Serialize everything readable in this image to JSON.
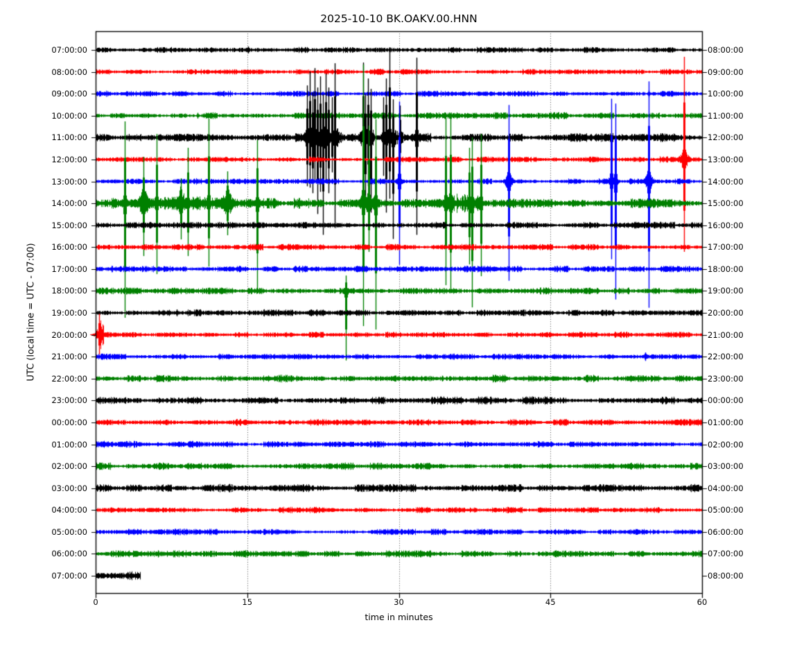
{
  "chart_data": {
    "type": "line",
    "subtype": "helicorder-dayplot",
    "title": "2025-10-10 BK.OAKV.00.HNN",
    "xlabel": "time in minutes",
    "ylabel": "UTC (local time = UTC - 07:00)",
    "x_range": [
      0,
      60
    ],
    "x_ticks": [
      0,
      15,
      30,
      45,
      60
    ],
    "grid_minutes": [
      15,
      30,
      45
    ],
    "minutes_per_row": 60,
    "row_color_cycle": [
      "#000000",
      "#ff0000",
      "#0000ff",
      "#008000"
    ],
    "background": "#ffffff",
    "rows": [
      {
        "left_label": "07:00:00",
        "right_label": "08:00:00",
        "color": "#000000",
        "noise": 3.0,
        "spikes": [
          {
            "t": 15.1,
            "up": 5,
            "dn": 5,
            "cw": 2,
            "ca": 4
          }
        ]
      },
      {
        "left_label": "08:00:00",
        "right_label": "09:00:00",
        "color": "#ff0000",
        "noise": 2.8
      },
      {
        "left_label": "09:00:00",
        "right_label": "10:00:00",
        "color": "#0000ff",
        "noise": 2.8,
        "spikes": [
          {
            "t": 54.7,
            "up": 5,
            "dn": 5,
            "cw": 2,
            "ca": 4
          }
        ]
      },
      {
        "left_label": "10:00:00",
        "right_label": "11:00:00",
        "color": "#008000",
        "noise": 3.2,
        "spikes": [
          {
            "t": 10.1,
            "up": 4,
            "dn": 4,
            "cw": 2,
            "ca": 3
          }
        ]
      },
      {
        "left_label": "11:00:00",
        "right_label": "12:00:00",
        "color": "#000000",
        "noise": 4.2,
        "bursts": [
          {
            "t0": 20.6,
            "t1": 24.4,
            "base": 14
          },
          {
            "t0": 26.2,
            "t1": 27.6,
            "base": 11
          },
          {
            "t0": 28.2,
            "t1": 30.6,
            "base": 9
          },
          {
            "t0": 31.3,
            "t1": 32.3,
            "base": 5
          },
          {
            "t0": 49.0,
            "t1": 58.0,
            "base": 4
          }
        ],
        "spikes": [
          {
            "t": 20.9,
            "up": 75,
            "dn": 70,
            "cw": 4,
            "ca": 20
          },
          {
            "t": 21.2,
            "up": 95,
            "dn": 72,
            "cw": 4,
            "ca": 20
          },
          {
            "t": 21.45,
            "up": 65,
            "dn": 80,
            "cw": 4,
            "ca": 18
          },
          {
            "t": 21.7,
            "up": 100,
            "dn": 62,
            "cw": 4,
            "ca": 18
          },
          {
            "t": 21.95,
            "up": 72,
            "dn": 110,
            "cw": 4,
            "ca": 18
          },
          {
            "t": 22.2,
            "up": 88,
            "dn": 78,
            "cw": 4,
            "ca": 18
          },
          {
            "t": 22.5,
            "up": 62,
            "dn": 140,
            "cw": 3,
            "ca": 15
          },
          {
            "t": 22.75,
            "up": 92,
            "dn": 62,
            "cw": 3,
            "ca": 15
          },
          {
            "t": 23.05,
            "up": 72,
            "dn": 80,
            "cw": 3,
            "ca": 15
          },
          {
            "t": 23.35,
            "up": 58,
            "dn": 50,
            "cw": 3,
            "ca": 12
          },
          {
            "t": 23.65,
            "up": 107,
            "dn": 122,
            "cw": 3,
            "ca": 14
          },
          {
            "t": 26.45,
            "up": 108,
            "dn": 60,
            "cw": 4,
            "ca": 22
          },
          {
            "t": 26.7,
            "up": 62,
            "dn": 95,
            "cw": 4,
            "ca": 20
          },
          {
            "t": 26.95,
            "up": 85,
            "dn": 70,
            "cw": 4,
            "ca": 18
          },
          {
            "t": 27.25,
            "up": 70,
            "dn": 108,
            "cw": 3,
            "ca": 15
          },
          {
            "t": 28.45,
            "up": 58,
            "dn": 55,
            "cw": 3,
            "ca": 14
          },
          {
            "t": 28.75,
            "up": 85,
            "dn": 108,
            "cw": 3,
            "ca": 14
          },
          {
            "t": 29.05,
            "up": 130,
            "dn": 88,
            "cw": 3,
            "ca": 16
          },
          {
            "t": 29.45,
            "up": 55,
            "dn": 146,
            "cw": 3,
            "ca": 12
          },
          {
            "t": 30.1,
            "up": 46,
            "dn": 40,
            "cw": 3,
            "ca": 12
          },
          {
            "t": 31.75,
            "up": 115,
            "dn": 140,
            "cw": 3,
            "ca": 12
          }
        ]
      },
      {
        "left_label": "12:00:00",
        "right_label": "13:00:00",
        "color": "#ff0000",
        "noise": 3.0,
        "spikes": [
          {
            "t": 58.2,
            "up": 148,
            "dn": 133,
            "cw": 5,
            "ca": 18
          }
        ]
      },
      {
        "left_label": "13:00:00",
        "right_label": "14:00:00",
        "color": "#0000ff",
        "noise": 3.0,
        "spikes": [
          {
            "t": 30.05,
            "up": 115,
            "dn": 120,
            "cw": 3,
            "ca": 14
          },
          {
            "t": 40.85,
            "up": 110,
            "dn": 143,
            "cw": 4,
            "ca": 20
          },
          {
            "t": 51.0,
            "up": 119,
            "dn": 112,
            "cw": 3,
            "ca": 18
          },
          {
            "t": 51.4,
            "up": 112,
            "dn": 170,
            "cw": 3,
            "ca": 13
          },
          {
            "t": 54.7,
            "up": 144,
            "dn": 182,
            "cw": 4,
            "ca": 22
          }
        ]
      },
      {
        "left_label": "14:00:00",
        "right_label": "15:00:00",
        "color": "#008000",
        "noise": 5.0,
        "bursts": [
          {
            "t0": 2.5,
            "t1": 16.6,
            "base": 7
          },
          {
            "t0": 26.0,
            "t1": 28.2,
            "base": 9
          },
          {
            "t0": 34.3,
            "t1": 38.5,
            "base": 11
          }
        ],
        "spikes": [
          {
            "t": 2.9,
            "up": 118,
            "dn": 165,
            "cw": 3,
            "ca": 16
          },
          {
            "t": 4.7,
            "up": 67,
            "dn": 76,
            "cw": 6,
            "ca": 26
          },
          {
            "t": 6.0,
            "up": 100,
            "dn": 102,
            "cw": 3,
            "ca": 16
          },
          {
            "t": 8.4,
            "up": 36,
            "dn": 52,
            "cw": 6,
            "ca": 24
          },
          {
            "t": 9.1,
            "up": 80,
            "dn": 76,
            "cw": 3,
            "ca": 14
          },
          {
            "t": 11.2,
            "up": 122,
            "dn": 91,
            "cw": 3,
            "ca": 14
          },
          {
            "t": 13.0,
            "up": 46,
            "dn": 46,
            "cw": 6,
            "ca": 26
          },
          {
            "t": 16.0,
            "up": 91,
            "dn": 130,
            "cw": 3,
            "ca": 16
          },
          {
            "t": 26.45,
            "up": 200,
            "dn": 177,
            "cw": 4,
            "ca": 22
          },
          {
            "t": 27.05,
            "up": 112,
            "dn": 70,
            "cw": 5,
            "ca": 22
          },
          {
            "t": 27.7,
            "up": 121,
            "dn": 182,
            "cw": 3,
            "ca": 14
          },
          {
            "t": 34.65,
            "up": 123,
            "dn": 118,
            "cw": 3,
            "ca": 18
          },
          {
            "t": 35.1,
            "up": 126,
            "dn": 128,
            "cw": 4,
            "ca": 20
          },
          {
            "t": 36.95,
            "up": 80,
            "dn": 88,
            "cw": 3,
            "ca": 14
          },
          {
            "t": 37.25,
            "up": 95,
            "dn": 150,
            "cw": 3,
            "ca": 14
          },
          {
            "t": 38.1,
            "up": 100,
            "dn": 105,
            "cw": 3,
            "ca": 12
          }
        ]
      },
      {
        "left_label": "15:00:00",
        "right_label": "16:00:00",
        "color": "#000000",
        "noise": 3.2
      },
      {
        "left_label": "16:00:00",
        "right_label": "17:00:00",
        "color": "#ff0000",
        "noise": 3.0
      },
      {
        "left_label": "17:00:00",
        "right_label": "18:00:00",
        "color": "#0000ff",
        "noise": 3.0
      },
      {
        "left_label": "18:00:00",
        "right_label": "19:00:00",
        "color": "#008000",
        "noise": 3.2,
        "spikes": [
          {
            "t": 24.75,
            "up": 22,
            "dn": 100,
            "cw": 4,
            "ca": 10
          }
        ]
      },
      {
        "left_label": "19:00:00",
        "right_label": "20:00:00",
        "color": "#000000",
        "noise": 3.4,
        "spikes": [
          {
            "t": 8.0,
            "up": 5,
            "dn": 5,
            "cw": 3,
            "ca": 4
          }
        ]
      },
      {
        "left_label": "20:00:00",
        "right_label": "21:00:00",
        "color": "#ff0000",
        "noise": 3.0,
        "bursts": [
          {
            "t0": 0.12,
            "t1": 0.8,
            "base": 16
          }
        ],
        "spikes": [
          {
            "t": 0.35,
            "up": 30,
            "dn": 28,
            "cw": 4,
            "ca": 14
          },
          {
            "t": 48.0,
            "up": 4,
            "dn": 4,
            "cw": 2,
            "ca": 3
          }
        ]
      },
      {
        "left_label": "21:00:00",
        "right_label": "22:00:00",
        "color": "#0000ff",
        "noise": 3.0,
        "spikes": [
          {
            "t": 54.4,
            "up": 6,
            "dn": 6,
            "cw": 4,
            "ca": 5
          }
        ]
      },
      {
        "left_label": "22:00:00",
        "right_label": "23:00:00",
        "color": "#008000",
        "noise": 3.8,
        "spikes": [
          {
            "t": 19.9,
            "up": 4,
            "dn": 4,
            "cw": 2,
            "ca": 3
          },
          {
            "t": 34.3,
            "up": 4,
            "dn": 4,
            "cw": 3,
            "ca": 3
          }
        ]
      },
      {
        "left_label": "23:00:00",
        "right_label": "00:00:00",
        "color": "#000000",
        "noise": 3.8,
        "spikes": [
          {
            "t": 0.4,
            "up": 5,
            "dn": 5,
            "cw": 2,
            "ca": 4
          }
        ]
      },
      {
        "left_label": "00:00:00",
        "right_label": "01:00:00",
        "color": "#ff0000",
        "noise": 3.2
      },
      {
        "left_label": "01:00:00",
        "right_label": "02:00:00",
        "color": "#0000ff",
        "noise": 3.2
      },
      {
        "left_label": "02:00:00",
        "right_label": "03:00:00",
        "color": "#008000",
        "noise": 3.4
      },
      {
        "left_label": "03:00:00",
        "right_label": "04:00:00",
        "color": "#000000",
        "noise": 4.0
      },
      {
        "left_label": "04:00:00",
        "right_label": "05:00:00",
        "color": "#ff0000",
        "noise": 3.0
      },
      {
        "left_label": "05:00:00",
        "right_label": "06:00:00",
        "color": "#0000ff",
        "noise": 3.0
      },
      {
        "left_label": "06:00:00",
        "right_label": "07:00:00",
        "color": "#008000",
        "noise": 3.4
      },
      {
        "left_label": "07:00:00",
        "right_label": "08:00:00",
        "color": "#000000",
        "noise": 4.5,
        "x1": 4.4
      }
    ]
  }
}
